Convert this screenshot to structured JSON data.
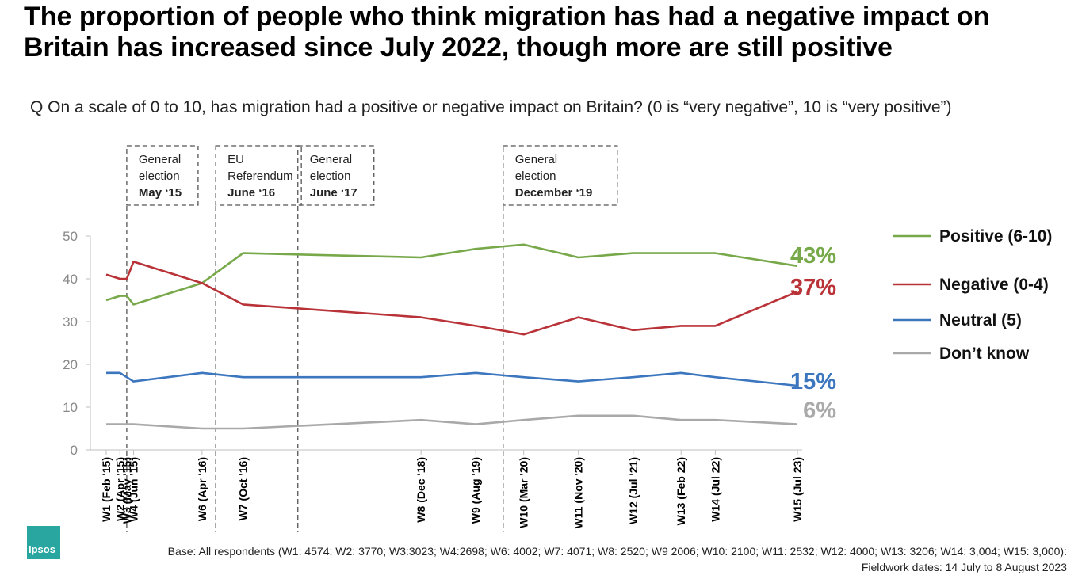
{
  "title": "The proportion of people who think migration has had a negative impact on Britain has increased since July 2022, though more are still positive",
  "question": "Q On a scale of 0 to 10, has migration had a positive or negative impact on Britain? (0 is “very negative”, 10 is “very positive”)",
  "base": "Base: All respondents (W1: 4574; W2: 3770; W3:3023; W4:2698; W6: 4002; W7: 4071; W8: 2520; W9 2006; W10: 2100; W11: 2532; W12: 4000; W13: 3206; W14: 3,004; W15: 3,000):",
  "fieldwork": "Fieldwork dates: 14 July to 8 August 2023",
  "logo_text": "Ipsos",
  "chart_data": {
    "type": "line",
    "ylim": [
      0,
      50
    ],
    "yticks": [
      0,
      10,
      20,
      30,
      40,
      50
    ],
    "x_dates": [
      "2015-02",
      "2015-04",
      "2015-05",
      "2015-06",
      "2016-04",
      "2016-10",
      "2018-12",
      "2019-08",
      "2020-03",
      "2020-11",
      "2021-07",
      "2022-02",
      "2022-07",
      "2023-07"
    ],
    "categories": [
      "W1 (Feb '15)",
      "W2 (Apr '15)",
      "W3 (May '15)",
      "W4 (Jun '15)",
      "W6 (Apr '16)",
      "W7 (Oct '16)",
      "W8 (Dec '18)",
      "W9 (Aug '19)",
      "W10 (Mar '20)",
      "W11 (Nov '20)",
      "W12 (Jul '21)",
      "W13 (Feb 22)",
      "W14 (Jul 22)",
      "W15 (Jul 23)"
    ],
    "series": [
      {
        "name": "Positive (6-10)",
        "color": "#77a94a",
        "end_label": "43%",
        "values": [
          35,
          36,
          36,
          34,
          39,
          46,
          45,
          47,
          48,
          45,
          46,
          46,
          46,
          43
        ]
      },
      {
        "name": "Negative (0-4)",
        "color": "#b83237",
        "end_label": "37%",
        "values": [
          41,
          40,
          40,
          44,
          39,
          34,
          31,
          29,
          27,
          31,
          28,
          29,
          29,
          37
        ]
      },
      {
        "name": "Neutral (5)",
        "color": "#3b76be",
        "end_label": "15%",
        "values": [
          18,
          18,
          17,
          16,
          18,
          17,
          17,
          18,
          17,
          16,
          17,
          18,
          17,
          15
        ]
      },
      {
        "name": "Don’t know",
        "color": "#a9a9a9",
        "end_label": "6%",
        "values": [
          6,
          6,
          6,
          6,
          5,
          5,
          7,
          6,
          7,
          8,
          8,
          7,
          7,
          6
        ]
      }
    ],
    "events": [
      {
        "date": "2015-05",
        "lines": [
          "General",
          "election",
          "May ‘15"
        ]
      },
      {
        "date": "2016-06",
        "lines": [
          "EU",
          "Referendum",
          "June ‘16"
        ]
      },
      {
        "date": "2017-06",
        "lines": [
          "General",
          "election",
          "June ‘17"
        ]
      },
      {
        "date": "2019-12",
        "lines": [
          "General",
          "election",
          "December ‘19"
        ]
      }
    ],
    "legend_position": "right"
  }
}
